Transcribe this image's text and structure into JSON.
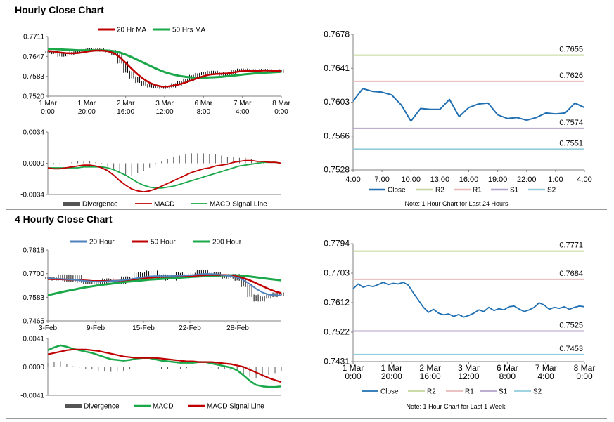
{
  "sections": [
    {
      "title": "Hourly Close Chart"
    },
    {
      "title": "4 Hourly Close Chart"
    }
  ],
  "colors": {
    "ma20_hourly": "#c00000",
    "ma50_hourly": "#1aa84a",
    "sma20_4h": "#4f81bd",
    "sma50_4h": "#c00000",
    "sma200_4h": "#1aa84a",
    "close": "#1f6fb2",
    "r2": "#c3d69b",
    "r1": "#e6b9b8",
    "s1": "#b3a2c7",
    "s2": "#93cddd",
    "price": "#000000",
    "divergence": "#555555"
  },
  "chart_data": [
    {
      "id": "hourly-price",
      "type": "line",
      "legend": [
        "20 Hr MA",
        "50 Hrs MA"
      ],
      "yticks": [
        "0.7711",
        "0.7647",
        "0.7583",
        "0.7520"
      ],
      "ylim": [
        0.752,
        0.7711
      ],
      "xticks": [
        [
          "1 Mar",
          "0:00"
        ],
        [
          "1 Mar",
          "20:00"
        ],
        [
          "2 Mar",
          "16:00"
        ],
        [
          "3 Mar",
          "12:00"
        ],
        [
          "6 Mar",
          "8:00"
        ],
        [
          "7 Mar",
          "4:00"
        ],
        [
          "8 Mar",
          "0:00"
        ]
      ],
      "price": [
        0.7662,
        0.7658,
        0.765,
        0.7655,
        0.766,
        0.7664,
        0.7668,
        0.7671,
        0.7669,
        0.7666,
        0.7664,
        0.7655,
        0.7628,
        0.7598,
        0.758,
        0.7566,
        0.7557,
        0.7551,
        0.7548,
        0.7547,
        0.7551,
        0.7558,
        0.7566,
        0.7573,
        0.7585,
        0.7591,
        0.7595,
        0.7598,
        0.7593,
        0.7589,
        0.7592,
        0.7601,
        0.7605,
        0.7603,
        0.76,
        0.7603,
        0.7604,
        0.76,
        0.7598,
        0.7603
      ],
      "series": [
        {
          "name": "20 Hr MA",
          "values": [
            0.7665,
            0.7663,
            0.766,
            0.7658,
            0.7657,
            0.7658,
            0.7661,
            0.7664,
            0.7666,
            0.7666,
            0.7664,
            0.7658,
            0.7645,
            0.7627,
            0.7608,
            0.759,
            0.7575,
            0.7563,
            0.7555,
            0.7551,
            0.7551,
            0.7554,
            0.7558,
            0.7564,
            0.7571,
            0.7578,
            0.7584,
            0.7589,
            0.7591,
            0.7592,
            0.7593,
            0.7596,
            0.7599,
            0.7601,
            0.7601,
            0.7601,
            0.7602,
            0.7602,
            0.7601,
            0.7601
          ]
        },
        {
          "name": "50 Hrs MA",
          "values": [
            0.7672,
            0.7671,
            0.767,
            0.7669,
            0.7668,
            0.7667,
            0.7667,
            0.7667,
            0.7667,
            0.7667,
            0.7666,
            0.7664,
            0.766,
            0.7653,
            0.7645,
            0.7636,
            0.7627,
            0.7618,
            0.7609,
            0.7601,
            0.7594,
            0.7589,
            0.7585,
            0.7582,
            0.758,
            0.7579,
            0.7579,
            0.758,
            0.7581,
            0.7582,
            0.7584,
            0.7586,
            0.7588,
            0.759,
            0.7592,
            0.7594,
            0.7595,
            0.7596,
            0.7597,
            0.7598
          ]
        }
      ]
    },
    {
      "id": "hourly-macd",
      "type": "line",
      "legend": [
        "Divergence",
        "MACD",
        "MACD Signal Line"
      ],
      "yticks": [
        "0.0034",
        "0.0000",
        "-0.0034"
      ],
      "ylim": [
        -0.0034,
        0.0034
      ],
      "series": [
        {
          "name": "MACD",
          "values": [
            -0.0005,
            -0.0006,
            -0.0006,
            -0.0005,
            -0.0004,
            -0.0003,
            -0.0002,
            -0.0002,
            -0.0003,
            -0.0005,
            -0.0008,
            -0.0013,
            -0.0019,
            -0.0024,
            -0.0028,
            -0.003,
            -0.0031,
            -0.003,
            -0.0028,
            -0.0025,
            -0.0022,
            -0.0019,
            -0.0016,
            -0.0013,
            -0.001,
            -0.0008,
            -0.0006,
            -0.0005,
            -0.0003,
            -0.0002,
            -0.0001,
            0.0001,
            0.0002,
            0.0003,
            0.0003,
            0.0002,
            0.0002,
            0.0001,
            0.0001,
            0.0
          ]
        },
        {
          "name": "MACD Signal Line",
          "values": [
            -0.0005,
            -0.0005,
            -0.0005,
            -0.0005,
            -0.0005,
            -0.0005,
            -0.0004,
            -0.0004,
            -0.0004,
            -0.0004,
            -0.0005,
            -0.0007,
            -0.001,
            -0.0013,
            -0.0017,
            -0.0021,
            -0.0024,
            -0.0026,
            -0.0027,
            -0.0027,
            -0.0026,
            -0.0025,
            -0.0023,
            -0.0021,
            -0.0019,
            -0.0017,
            -0.0015,
            -0.0013,
            -0.0011,
            -0.0009,
            -0.0007,
            -0.0005,
            -0.0003,
            -0.0002,
            -0.0001,
            0.0,
            0.0001,
            0.0001,
            0.0001,
            0.0
          ]
        }
      ]
    },
    {
      "id": "hourly-24h",
      "type": "line",
      "yticks": [
        "0.7678",
        "0.7641",
        "0.7603",
        "0.7566",
        "0.7528"
      ],
      "ylim": [
        0.7528,
        0.7678
      ],
      "xticks": [
        "4:00",
        "7:00",
        "10:00",
        "13:00",
        "16:00",
        "19:00",
        "22:00",
        "1:00",
        "4:00"
      ],
      "levels": [
        {
          "name": "R2",
          "value": 0.7655,
          "label": "0.7655"
        },
        {
          "name": "R1",
          "value": 0.7626,
          "label": "0.7626"
        },
        {
          "name": "S1",
          "value": 0.7574,
          "label": "0.7574"
        },
        {
          "name": "S2",
          "value": 0.7551,
          "label": "0.7551"
        }
      ],
      "legend": [
        "Close",
        "R2",
        "R1",
        "S1",
        "S2"
      ],
      "note": "Note: 1 Hour Chart for Last 24 Hours",
      "series": [
        {
          "name": "Close",
          "values": [
            0.7604,
            0.7618,
            0.7615,
            0.7614,
            0.7611,
            0.76,
            0.7582,
            0.7596,
            0.7595,
            0.7595,
            0.7606,
            0.7587,
            0.7597,
            0.7601,
            0.7602,
            0.7589,
            0.7585,
            0.7586,
            0.7583,
            0.7586,
            0.7591,
            0.759,
            0.7591,
            0.7602,
            0.7597
          ]
        }
      ]
    },
    {
      "id": "four-hourly-price",
      "type": "line",
      "legend": [
        "20 Hour",
        "50 Hour",
        "200 Hour"
      ],
      "yticks": [
        "0.7818",
        "0.7700",
        "0.7583",
        "0.7465"
      ],
      "ylim": [
        0.7465,
        0.7818
      ],
      "xticks": [
        "3-Feb",
        "9-Feb",
        "15-Feb",
        "22-Feb",
        "28-Feb"
      ],
      "price": [
        0.7678,
        0.7672,
        0.769,
        0.7664,
        0.7688,
        0.7661,
        0.7653,
        0.766,
        0.7648,
        0.767,
        0.7662,
        0.7655,
        0.768,
        0.7668,
        0.77,
        0.7685,
        0.7709,
        0.7676,
        0.769,
        0.7672,
        0.77,
        0.7684,
        0.769,
        0.7698,
        0.7714,
        0.7688,
        0.7702,
        0.7689,
        0.7682,
        0.7692,
        0.7671,
        0.764,
        0.759,
        0.7568,
        0.7582,
        0.759,
        0.76,
        0.7597
      ],
      "series": [
        {
          "name": "20 Hour",
          "values": [
            0.7677,
            0.7675,
            0.7674,
            0.7672,
            0.767,
            0.7667,
            0.7664,
            0.7661,
            0.766,
            0.7661,
            0.7663,
            0.7665,
            0.7668,
            0.7672,
            0.7677,
            0.7682,
            0.7686,
            0.7688,
            0.7688,
            0.7688,
            0.7689,
            0.769,
            0.7691,
            0.7693,
            0.7697,
            0.7699,
            0.7698,
            0.7696,
            0.7692,
            0.7688,
            0.7681,
            0.7668,
            0.7648,
            0.7625,
            0.7607,
            0.7596,
            0.7592,
            0.7593
          ]
        },
        {
          "name": "50 Hour",
          "values": [
            0.7673,
            0.7673,
            0.7672,
            0.7671,
            0.767,
            0.7668,
            0.7666,
            0.7664,
            0.7663,
            0.7663,
            0.7664,
            0.7665,
            0.7667,
            0.767,
            0.7673,
            0.7677,
            0.768,
            0.7682,
            0.7684,
            0.7685,
            0.7686,
            0.7687,
            0.7688,
            0.7689,
            0.7691,
            0.7693,
            0.7694,
            0.7694,
            0.7693,
            0.7691,
            0.7686,
            0.7678,
            0.7667,
            0.7653,
            0.7638,
            0.7624,
            0.7612,
            0.7603
          ]
        },
        {
          "name": "200 Hour",
          "values": [
            0.7593,
            0.76,
            0.7607,
            0.7614,
            0.762,
            0.7626,
            0.7632,
            0.7637,
            0.7642,
            0.7646,
            0.765,
            0.7654,
            0.7658,
            0.7661,
            0.7664,
            0.7667,
            0.767,
            0.7672,
            0.7674,
            0.7676,
            0.7678,
            0.768,
            0.7682,
            0.7684,
            0.7686,
            0.7688,
            0.769,
            0.7691,
            0.7692,
            0.7692,
            0.7691,
            0.7689,
            0.7686,
            0.7682,
            0.7678,
            0.7674,
            0.767,
            0.7667
          ]
        }
      ]
    },
    {
      "id": "four-hourly-macd",
      "type": "line",
      "legend": [
        "Divergence",
        "MACD",
        "MACD Signal Line"
      ],
      "yticks": [
        "0.0041",
        "0.0000",
        "-0.0041"
      ],
      "ylim": [
        -0.0041,
        0.0041
      ],
      "series": [
        {
          "name": "MACD",
          "values": [
            0.0024,
            0.0028,
            0.0031,
            0.0029,
            0.0026,
            0.0024,
            0.0022,
            0.002,
            0.0017,
            0.0014,
            0.0011,
            0.001,
            0.0009,
            0.001,
            0.0012,
            0.0013,
            0.0013,
            0.0011,
            0.0009,
            0.0008,
            0.0007,
            0.0006,
            0.0006,
            0.0006,
            0.0007,
            0.0007,
            0.0005,
            0.0003,
            0.0001,
            -0.0001,
            -0.0005,
            -0.0012,
            -0.002,
            -0.0026,
            -0.0028,
            -0.0029,
            -0.0029,
            -0.0028
          ]
        },
        {
          "name": "MACD Signal Line",
          "values": [
            0.0018,
            0.002,
            0.0022,
            0.0024,
            0.0025,
            0.0025,
            0.0025,
            0.0024,
            0.0023,
            0.0021,
            0.0019,
            0.0017,
            0.0015,
            0.0014,
            0.0013,
            0.0013,
            0.0013,
            0.0013,
            0.0012,
            0.0011,
            0.001,
            0.0009,
            0.0008,
            0.0008,
            0.0007,
            0.0007,
            0.0007,
            0.0006,
            0.0005,
            0.0004,
            0.0002,
            0.0,
            -0.0004,
            -0.0008,
            -0.0012,
            -0.0016,
            -0.0019,
            -0.0022
          ]
        }
      ]
    },
    {
      "id": "four-hourly-week",
      "type": "line",
      "yticks": [
        "0.7794",
        "0.7703",
        "0.7612",
        "0.7522",
        "0.7431"
      ],
      "ylim": [
        0.7431,
        0.7794
      ],
      "xticks": [
        [
          "1 Mar",
          "0:00"
        ],
        [
          "1 Mar",
          "20:00"
        ],
        [
          "2 Mar",
          "16:00"
        ],
        [
          "3 Mar",
          "12:00"
        ],
        [
          "6 Mar",
          "8:00"
        ],
        [
          "7 Mar",
          "4:00"
        ],
        [
          "8 Mar",
          "0:00"
        ]
      ],
      "levels": [
        {
          "name": "R2",
          "value": 0.7771,
          "label": "0.7771"
        },
        {
          "name": "R1",
          "value": 0.7684,
          "label": "0.7684"
        },
        {
          "name": "S1",
          "value": 0.7525,
          "label": "0.7525"
        },
        {
          "name": "S2",
          "value": 0.7453,
          "label": "0.7453"
        }
      ],
      "legend": [
        "Close",
        "R2",
        "R1",
        "S1",
        "S2"
      ],
      "note": "Note: 1 Hour Chart for Last 1 Week",
      "series": [
        {
          "name": "Close",
          "values": [
            0.7655,
            0.767,
            0.766,
            0.7665,
            0.7662,
            0.7668,
            0.7675,
            0.7668,
            0.7672,
            0.767,
            0.7675,
            0.7666,
            0.7642,
            0.762,
            0.7598,
            0.7583,
            0.7592,
            0.758,
            0.7575,
            0.7578,
            0.757,
            0.7576,
            0.7568,
            0.7573,
            0.758,
            0.759,
            0.7585,
            0.7598,
            0.7588,
            0.7594,
            0.759,
            0.76,
            0.7602,
            0.7593,
            0.7585,
            0.759,
            0.7598,
            0.7612,
            0.7605,
            0.7592,
            0.7598,
            0.7595,
            0.76,
            0.7592,
            0.7598,
            0.7602,
            0.76
          ]
        }
      ]
    }
  ]
}
